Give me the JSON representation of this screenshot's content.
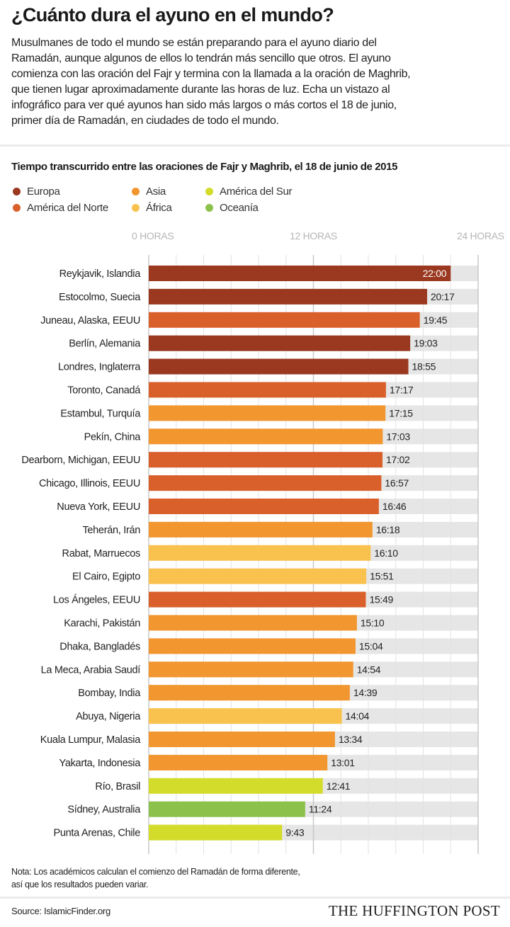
{
  "header": {
    "title": "¿Cuánto dura el ayuno en el mundo?",
    "intro_lines": [
      "Musulmanes de todo el mundo se están preparando para el ayuno diario del",
      "Ramadán, aunque algunos de ellos lo tendrán más sencillo que otros. El ayuno",
      "comienza con las oración del Fajr y termina con la llamada a la oración de Maghrib,",
      "que tienen lugar aproximadamente durante las horas de luz. Echa un vistazo al",
      "infográfico para ver qué ayunos han sido más largos o más cortos el 18 de junio,",
      "primer día de Ramadán, en ciudades de todo el mundo."
    ]
  },
  "chart_data": {
    "type": "bar",
    "orientation": "horizontal",
    "title": "Tiempo transcurrido entre las oraciones de Fajr y Maghrib, el 18 de junio de 2015",
    "xlim": [
      0,
      24
    ],
    "x_ticks": [
      {
        "value": 0,
        "label": "0 HORAS"
      },
      {
        "value": 12,
        "label": "12 HORAS"
      },
      {
        "value": 24,
        "label": "24 HORAS"
      }
    ],
    "grid_step": 2,
    "grid": true,
    "legend": [
      {
        "name": "Europa",
        "color": "#9a3820"
      },
      {
        "name": "Asia",
        "color": "#f2962f"
      },
      {
        "name": "América del Sur",
        "color": "#d3dc2b"
      },
      {
        "name": "América del Norte",
        "color": "#d9602b"
      },
      {
        "name": "África",
        "color": "#f9c24f"
      },
      {
        "name": "Oceanía",
        "color": "#8cc24b"
      }
    ],
    "legend_position": "top-left",
    "bars": [
      {
        "city": "Reykjavik, Islandia",
        "region": "Europa",
        "label": "22:00",
        "hours": 22.0
      },
      {
        "city": "Estocolmo, Suecia",
        "region": "Europa",
        "label": "20:17",
        "hours": 20.283
      },
      {
        "city": "Juneau, Alaska, EEUU",
        "region": "América del Norte",
        "label": "19:45",
        "hours": 19.75
      },
      {
        "city": "Berlín, Alemania",
        "region": "Europa",
        "label": "19:03",
        "hours": 19.05
      },
      {
        "city": "Londres, Inglaterra",
        "region": "Europa",
        "label": "18:55",
        "hours": 18.917
      },
      {
        "city": "Toronto, Canadá",
        "region": "América del Norte",
        "label": "17:17",
        "hours": 17.283
      },
      {
        "city": "Estambul, Turquía",
        "region": "Asia",
        "label": "17:15",
        "hours": 17.25
      },
      {
        "city": "Pekín, China",
        "region": "Asia",
        "label": "17:03",
        "hours": 17.05
      },
      {
        "city": "Dearborn, Michigan, EEUU",
        "region": "América del Norte",
        "label": "17:02",
        "hours": 17.033
      },
      {
        "city": "Chicago, Illinois, EEUU",
        "region": "América del Norte",
        "label": "16:57",
        "hours": 16.95
      },
      {
        "city": "Nueva York, EEUU",
        "region": "América del Norte",
        "label": "16:46",
        "hours": 16.767
      },
      {
        "city": "Teherán, Irán",
        "region": "Asia",
        "label": "16:18",
        "hours": 16.3
      },
      {
        "city": "Rabat, Marruecos",
        "region": "África",
        "label": "16:10",
        "hours": 16.167
      },
      {
        "city": "El Cairo, Egipto",
        "region": "África",
        "label": "15:51",
        "hours": 15.85
      },
      {
        "city": "Los Ángeles, EEUU",
        "region": "América del Norte",
        "label": "15:49",
        "hours": 15.817
      },
      {
        "city": "Karachi, Pakistán",
        "region": "Asia",
        "label": "15:10",
        "hours": 15.167
      },
      {
        "city": "Dhaka, Bangladés",
        "region": "Asia",
        "label": "15:04",
        "hours": 15.067
      },
      {
        "city": "La Meca, Arabia Saudí",
        "region": "Asia",
        "label": "14:54",
        "hours": 14.9
      },
      {
        "city": "Bombay, India",
        "region": "Asia",
        "label": "14:39",
        "hours": 14.65
      },
      {
        "city": "Abuya, Nigeria",
        "region": "África",
        "label": "14:04",
        "hours": 14.067
      },
      {
        "city": "Kuala Lumpur, Malasia",
        "region": "Asia",
        "label": "13:34",
        "hours": 13.567
      },
      {
        "city": "Yakarta, Indonesia",
        "region": "Asia",
        "label": "13:01",
        "hours": 13.017
      },
      {
        "city": "Río, Brasil",
        "region": "América del Sur",
        "label": "12:41",
        "hours": 12.683
      },
      {
        "city": "Sídney, Australia",
        "region": "Oceanía",
        "label": "11:24",
        "hours": 11.4
      },
      {
        "city": "Punta Arenas, Chile",
        "region": "América del Sur",
        "label": "9:43",
        "hours": 9.717
      }
    ]
  },
  "footer": {
    "note_lines": [
      "Nota: Los académicos calculan el comienzo del Ramadán de forma diferente,",
      "así que los resultados pueden variar."
    ],
    "source": "Source: IslamicFinder.org",
    "brand": "THE HUFFINGTON POST"
  }
}
